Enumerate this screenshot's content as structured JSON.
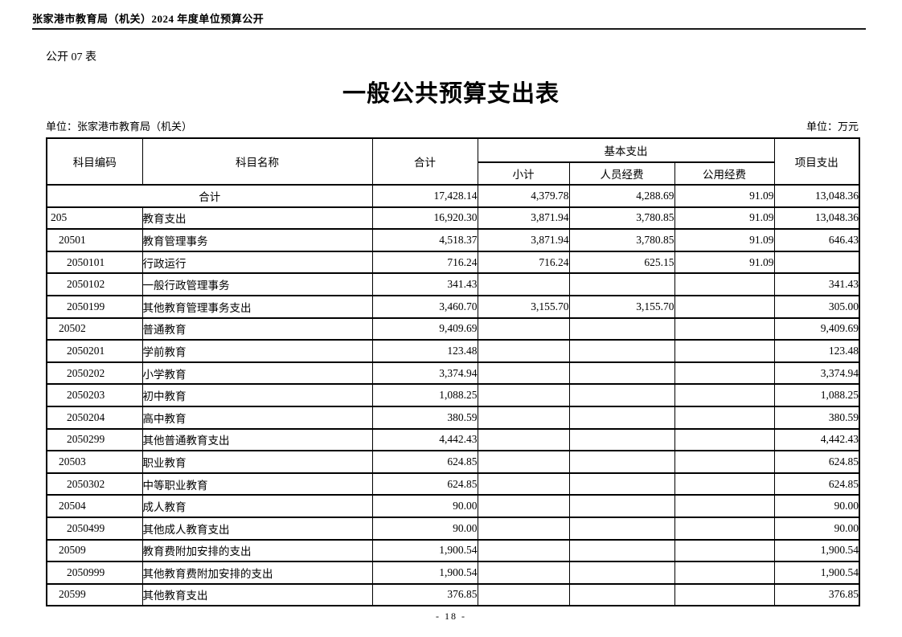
{
  "page_header": {
    "text": "张家港市教育局（机关）2024 年度单位预算公开"
  },
  "form_label": "公开 07 表",
  "title": "一般公共预算支出表",
  "unit_left": "单位：张家港市教育局（机关）",
  "unit_right": "单位：万元",
  "table": {
    "headers": {
      "code": "科目编码",
      "name": "科目名称",
      "total": "合计",
      "basic_group": "基本支出",
      "subtotal": "小计",
      "personnel": "人员经费",
      "public": "公用经费",
      "project": "项目支出"
    },
    "rows": [
      {
        "code": "",
        "name": "合计",
        "merged": true,
        "level": 0,
        "total": "17,428.14",
        "subtotal": "4,379.78",
        "personnel": "4,288.69",
        "public": "91.09",
        "project": "13,048.36"
      },
      {
        "code": "205",
        "name": "教育支出",
        "level": 1,
        "total": "16,920.30",
        "subtotal": "3,871.94",
        "personnel": "3,780.85",
        "public": "91.09",
        "project": "13,048.36"
      },
      {
        "code": "20501",
        "name": "教育管理事务",
        "level": 2,
        "total": "4,518.37",
        "subtotal": "3,871.94",
        "personnel": "3,780.85",
        "public": "91.09",
        "project": "646.43"
      },
      {
        "code": "2050101",
        "name": "行政运行",
        "level": 3,
        "total": "716.24",
        "subtotal": "716.24",
        "personnel": "625.15",
        "public": "91.09",
        "project": ""
      },
      {
        "code": "2050102",
        "name": "一般行政管理事务",
        "level": 3,
        "total": "341.43",
        "subtotal": "",
        "personnel": "",
        "public": "",
        "project": "341.43"
      },
      {
        "code": "2050199",
        "name": "其他教育管理事务支出",
        "level": 3,
        "total": "3,460.70",
        "subtotal": "3,155.70",
        "personnel": "3,155.70",
        "public": "",
        "project": "305.00"
      },
      {
        "code": "20502",
        "name": "普通教育",
        "level": 2,
        "total": "9,409.69",
        "subtotal": "",
        "personnel": "",
        "public": "",
        "project": "9,409.69"
      },
      {
        "code": "2050201",
        "name": "学前教育",
        "level": 3,
        "total": "123.48",
        "subtotal": "",
        "personnel": "",
        "public": "",
        "project": "123.48"
      },
      {
        "code": "2050202",
        "name": "小学教育",
        "level": 3,
        "total": "3,374.94",
        "subtotal": "",
        "personnel": "",
        "public": "",
        "project": "3,374.94"
      },
      {
        "code": "2050203",
        "name": "初中教育",
        "level": 3,
        "total": "1,088.25",
        "subtotal": "",
        "personnel": "",
        "public": "",
        "project": "1,088.25"
      },
      {
        "code": "2050204",
        "name": "高中教育",
        "level": 3,
        "total": "380.59",
        "subtotal": "",
        "personnel": "",
        "public": "",
        "project": "380.59"
      },
      {
        "code": "2050299",
        "name": "其他普通教育支出",
        "level": 3,
        "total": "4,442.43",
        "subtotal": "",
        "personnel": "",
        "public": "",
        "project": "4,442.43"
      },
      {
        "code": "20503",
        "name": "职业教育",
        "level": 2,
        "total": "624.85",
        "subtotal": "",
        "personnel": "",
        "public": "",
        "project": "624.85"
      },
      {
        "code": "2050302",
        "name": "中等职业教育",
        "level": 3,
        "total": "624.85",
        "subtotal": "",
        "personnel": "",
        "public": "",
        "project": "624.85"
      },
      {
        "code": "20504",
        "name": "成人教育",
        "level": 2,
        "total": "90.00",
        "subtotal": "",
        "personnel": "",
        "public": "",
        "project": "90.00"
      },
      {
        "code": "2050499",
        "name": "其他成人教育支出",
        "level": 3,
        "total": "90.00",
        "subtotal": "",
        "personnel": "",
        "public": "",
        "project": "90.00"
      },
      {
        "code": "20509",
        "name": "教育费附加安排的支出",
        "level": 2,
        "total": "1,900.54",
        "subtotal": "",
        "personnel": "",
        "public": "",
        "project": "1,900.54"
      },
      {
        "code": "2050999",
        "name": "其他教育费附加安排的支出",
        "level": 3,
        "total": "1,900.54",
        "subtotal": "",
        "personnel": "",
        "public": "",
        "project": "1,900.54"
      },
      {
        "code": "20599",
        "name": "其他教育支出",
        "level": 2,
        "total": "376.85",
        "subtotal": "",
        "personnel": "",
        "public": "",
        "project": "376.85"
      }
    ]
  },
  "footer": {
    "page_number": "- 18 -"
  }
}
